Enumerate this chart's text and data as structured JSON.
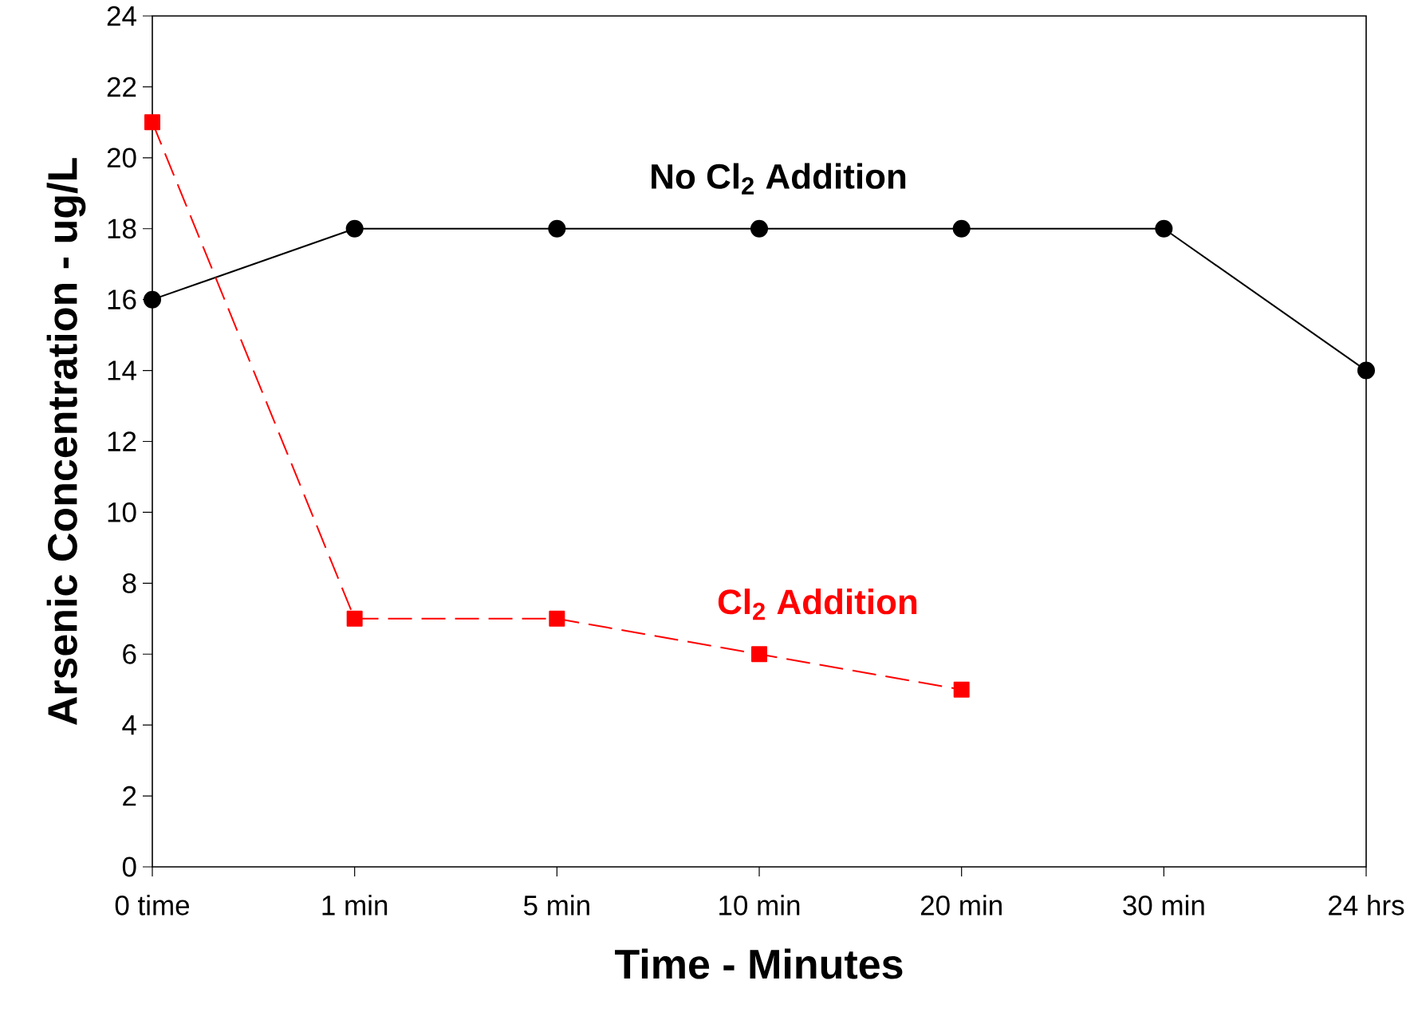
{
  "chart_data": {
    "type": "line",
    "xlabel": "Time - Minutes",
    "ylabel": "Arsenic Concentration - ug/L",
    "categories": [
      "0 time",
      "1 min",
      "5 min",
      "10 min",
      "20 min",
      "30 min",
      "24 hrs"
    ],
    "ylim": [
      0,
      24
    ],
    "yticks": [
      0,
      2,
      4,
      6,
      8,
      10,
      12,
      14,
      16,
      18,
      20,
      22,
      24
    ],
    "legend": false,
    "grid": false,
    "series": [
      {
        "name": "No Cl$_{2}$ Addition",
        "color": "#000000",
        "marker": "circle",
        "line_style": "solid",
        "values": [
          16,
          18,
          18,
          18,
          18,
          18,
          14
        ]
      },
      {
        "name": "Cl$_{2}$ Addition",
        "color": "#ff0000",
        "marker": "square",
        "line_style": "dashed",
        "values": [
          21,
          7,
          7,
          6,
          5,
          null,
          null
        ]
      }
    ]
  }
}
